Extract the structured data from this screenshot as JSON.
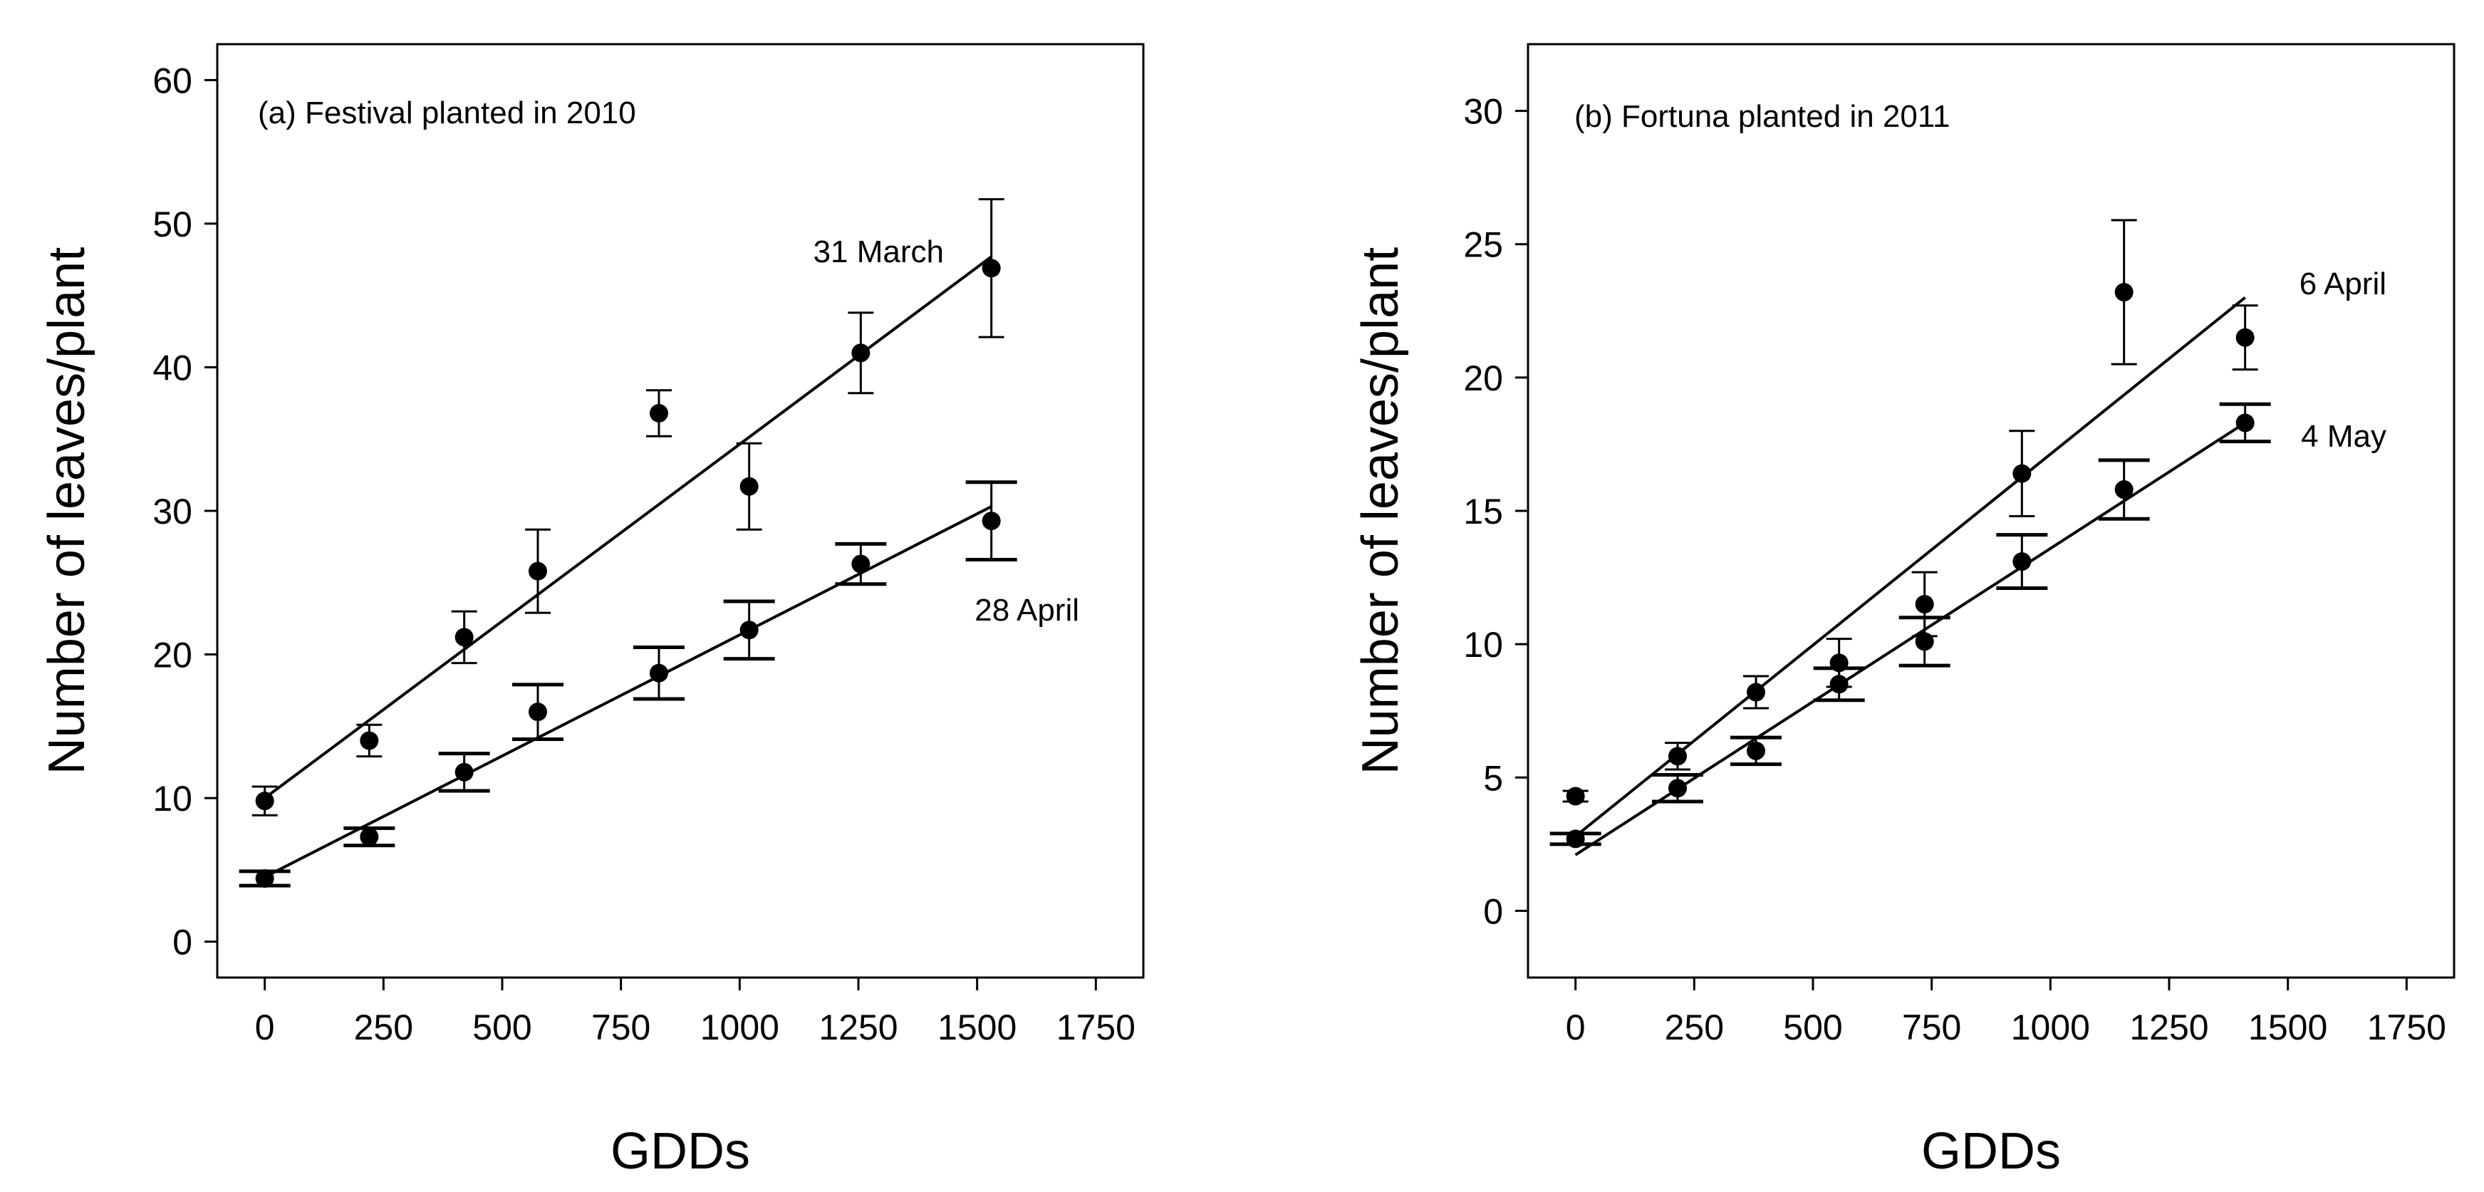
{
  "chart_data": [
    {
      "type": "scatter",
      "title": "(a) Festival planted in 2010",
      "xlabel": "GDDs",
      "ylabel": "Number of leaves/plant",
      "xlim": [
        -100,
        1850
      ],
      "ylim": [
        -2.5,
        62.5
      ],
      "xticks": [
        0,
        250,
        500,
        750,
        1000,
        1250,
        1500,
        1750
      ],
      "yticks": [
        0,
        10,
        20,
        30,
        40,
        50,
        60
      ],
      "grid": false,
      "series": [
        {
          "name": "31 March",
          "x": [
            0,
            220,
            420,
            575,
            830,
            1020,
            1255,
            1530
          ],
          "y": [
            9.8,
            14.0,
            21.2,
            25.8,
            36.8,
            31.7,
            41.0,
            46.9
          ],
          "err": [
            1.0,
            1.1,
            1.8,
            2.9,
            1.6,
            3.0,
            2.8,
            4.8
          ],
          "fit": {
            "x": [
              0,
              1530
            ],
            "y": [
              10.0,
              47.7
            ]
          }
        },
        {
          "name": "28 April",
          "x": [
            0,
            220,
            420,
            575,
            830,
            1020,
            1255,
            1530
          ],
          "y": [
            4.4,
            7.3,
            11.8,
            16.0,
            18.7,
            21.7,
            26.3,
            29.3
          ],
          "err": [
            0.5,
            0.6,
            1.3,
            1.9,
            1.8,
            2.0,
            1.4,
            2.7
          ],
          "fit": {
            "x": [
              0,
              1530
            ],
            "y": [
              4.5,
              30.3
            ]
          }
        }
      ],
      "annotations": [
        "31 March",
        "28 April"
      ]
    },
    {
      "type": "scatter",
      "title": "(b) Fortuna planted in 2011",
      "xlabel": "GDDs",
      "ylabel": "Number of leaves/plant",
      "xlim": [
        -100,
        1850
      ],
      "ylim": [
        -2.5,
        32.5
      ],
      "xticks": [
        0,
        250,
        500,
        750,
        1000,
        1250,
        1500,
        1750
      ],
      "yticks": [
        0,
        5,
        10,
        15,
        20,
        25,
        30
      ],
      "grid": false,
      "series": [
        {
          "name": "6 April",
          "x": [
            0,
            215,
            380,
            555,
            735,
            940,
            1155,
            1410
          ],
          "y": [
            4.3,
            5.8,
            8.2,
            9.3,
            11.5,
            16.4,
            23.2,
            21.5
          ],
          "err": [
            0.2,
            0.5,
            0.6,
            0.9,
            1.2,
            1.6,
            2.7,
            1.2
          ],
          "fit": {
            "x": [
              0,
              1410
            ],
            "y": [
              2.8,
              23.0
            ]
          }
        },
        {
          "name": "4 May",
          "x": [
            0,
            215,
            380,
            555,
            735,
            940,
            1155,
            1410
          ],
          "y": [
            2.7,
            4.6,
            6.0,
            8.5,
            10.1,
            13.1,
            15.8,
            18.3
          ],
          "err": [
            0.2,
            0.5,
            0.5,
            0.6,
            0.9,
            1.0,
            1.1,
            0.7
          ],
          "fit": {
            "x": [
              0,
              1410
            ],
            "y": [
              2.1,
              18.3
            ]
          }
        }
      ],
      "annotations": [
        "6 April",
        "4 May"
      ]
    }
  ]
}
